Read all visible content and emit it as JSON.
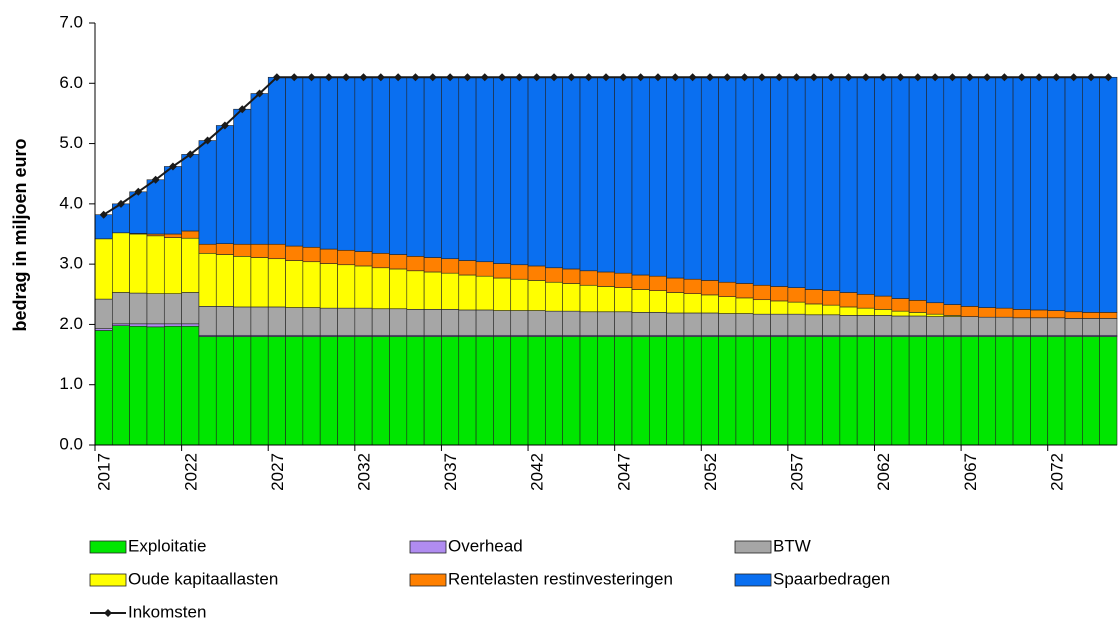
{
  "chart_data": {
    "type": "bar",
    "stacked": true,
    "y_label": "bedrag in miljoen euro",
    "ylim": [
      0,
      7
    ],
    "yticks": [
      {
        "value": 0,
        "label": "0.0"
      },
      {
        "value": 1,
        "label": "1.0"
      },
      {
        "value": 2,
        "label": "2.0"
      },
      {
        "value": 3,
        "label": "3.0"
      },
      {
        "value": 4,
        "label": "4.0"
      },
      {
        "value": 5,
        "label": "5.0"
      },
      {
        "value": 6,
        "label": "6.0"
      },
      {
        "value": 7,
        "label": "7.0"
      }
    ],
    "categories": [
      "2017",
      null,
      null,
      null,
      null,
      "2022",
      null,
      null,
      null,
      null,
      "2027",
      null,
      null,
      null,
      null,
      "2032",
      null,
      null,
      null,
      null,
      "2037",
      null,
      null,
      null,
      null,
      "2042",
      null,
      null,
      null,
      null,
      "2047",
      null,
      null,
      null,
      null,
      "2052",
      null,
      null,
      null,
      null,
      "2057",
      null,
      null,
      null,
      null,
      "2062",
      null,
      null,
      null,
      null,
      "2067",
      null,
      null,
      null,
      null,
      "2072",
      null,
      null,
      null
    ],
    "series": [
      {
        "name": "Exploitatie",
        "type": "bar",
        "color": "#00e600",
        "values": [
          1.9,
          1.98,
          1.97,
          1.96,
          1.97,
          1.97,
          1.8,
          1.8,
          1.8,
          1.8,
          1.8,
          1.8,
          1.8,
          1.8,
          1.8,
          1.8,
          1.8,
          1.8,
          1.8,
          1.8,
          1.8,
          1.8,
          1.8,
          1.8,
          1.8,
          1.8,
          1.8,
          1.8,
          1.8,
          1.8,
          1.8,
          1.8,
          1.8,
          1.8,
          1.8,
          1.8,
          1.8,
          1.8,
          1.8,
          1.8,
          1.8,
          1.8,
          1.8,
          1.8,
          1.8,
          1.8,
          1.8,
          1.8,
          1.8,
          1.8,
          1.8,
          1.8,
          1.8,
          1.8,
          1.8,
          1.8,
          1.8,
          1.8,
          1.8
        ]
      },
      {
        "name": "Overhead",
        "type": "bar",
        "color": "#b08cf0",
        "values": [
          0.03,
          0.03,
          0.04,
          0.05,
          0.04,
          0.04,
          0.02,
          0.02,
          0.02,
          0.02,
          0.02,
          0.02,
          0.02,
          0.02,
          0.02,
          0.02,
          0.02,
          0.02,
          0.02,
          0.02,
          0.02,
          0.02,
          0.02,
          0.02,
          0.02,
          0.02,
          0.02,
          0.02,
          0.02,
          0.02,
          0.02,
          0.02,
          0.02,
          0.02,
          0.02,
          0.02,
          0.02,
          0.02,
          0.02,
          0.02,
          0.02,
          0.02,
          0.02,
          0.02,
          0.02,
          0.02,
          0.02,
          0.02,
          0.02,
          0.02,
          0.02,
          0.02,
          0.02,
          0.02,
          0.02,
          0.02,
          0.02,
          0.02,
          0.02
        ]
      },
      {
        "name": "BTW",
        "type": "bar",
        "color": "#a6a6a6",
        "values": [
          0.49,
          0.52,
          0.51,
          0.5,
          0.5,
          0.52,
          0.48,
          0.48,
          0.47,
          0.47,
          0.47,
          0.46,
          0.46,
          0.45,
          0.45,
          0.45,
          0.44,
          0.44,
          0.43,
          0.43,
          0.43,
          0.42,
          0.42,
          0.41,
          0.41,
          0.41,
          0.4,
          0.4,
          0.39,
          0.39,
          0.39,
          0.38,
          0.38,
          0.37,
          0.37,
          0.37,
          0.36,
          0.36,
          0.35,
          0.35,
          0.35,
          0.34,
          0.34,
          0.33,
          0.33,
          0.33,
          0.32,
          0.32,
          0.31,
          0.31,
          0.31,
          0.3,
          0.3,
          0.29,
          0.29,
          0.29,
          0.28,
          0.28,
          0.28
        ]
      },
      {
        "name": "Oude kapitaallasten",
        "type": "bar",
        "color": "#ffff00",
        "values": [
          1.0,
          0.99,
          0.98,
          0.96,
          0.93,
          0.9,
          0.88,
          0.86,
          0.84,
          0.82,
          0.8,
          0.78,
          0.76,
          0.74,
          0.72,
          0.7,
          0.68,
          0.66,
          0.64,
          0.62,
          0.6,
          0.58,
          0.56,
          0.54,
          0.52,
          0.5,
          0.48,
          0.46,
          0.44,
          0.42,
          0.4,
          0.38,
          0.36,
          0.34,
          0.32,
          0.3,
          0.28,
          0.26,
          0.24,
          0.22,
          0.2,
          0.18,
          0.16,
          0.14,
          0.12,
          0.1,
          0.08,
          0.06,
          0.04,
          0.02,
          0,
          0,
          0,
          0,
          0,
          0,
          0,
          0,
          0
        ]
      },
      {
        "name": "Rentelasten restinvesteringen",
        "type": "bar",
        "color": "#ff8000",
        "values": [
          0,
          0,
          0.01,
          0.03,
          0.06,
          0.12,
          0.15,
          0.18,
          0.2,
          0.22,
          0.24,
          0.24,
          0.24,
          0.24,
          0.24,
          0.24,
          0.24,
          0.24,
          0.24,
          0.24,
          0.24,
          0.24,
          0.24,
          0.24,
          0.24,
          0.24,
          0.24,
          0.24,
          0.24,
          0.24,
          0.24,
          0.24,
          0.24,
          0.24,
          0.24,
          0.24,
          0.24,
          0.24,
          0.24,
          0.24,
          0.24,
          0.24,
          0.24,
          0.24,
          0.23,
          0.22,
          0.21,
          0.2,
          0.19,
          0.18,
          0.17,
          0.16,
          0.15,
          0.14,
          0.13,
          0.12,
          0.11,
          0.1,
          0.1
        ]
      },
      {
        "name": "Spaarbedragen",
        "type": "bar",
        "color": "#0a6ff0",
        "values": [
          0.4,
          0.48,
          0.69,
          0.9,
          1.12,
          1.27,
          1.72,
          1.96,
          2.24,
          2.5,
          2.77,
          2.8,
          2.82,
          2.85,
          2.87,
          2.89,
          2.92,
          2.94,
          2.97,
          2.99,
          3.01,
          3.04,
          3.06,
          3.09,
          3.11,
          3.13,
          3.16,
          3.18,
          3.21,
          3.23,
          3.25,
          3.28,
          3.3,
          3.33,
          3.35,
          3.37,
          3.4,
          3.42,
          3.45,
          3.47,
          3.49,
          3.52,
          3.54,
          3.57,
          3.6,
          3.63,
          3.67,
          3.7,
          3.74,
          3.77,
          3.8,
          3.82,
          3.83,
          3.85,
          3.86,
          3.87,
          3.89,
          3.9,
          3.9
        ]
      },
      {
        "name": "Inkomsten",
        "type": "line",
        "color": "#1a1a1a",
        "values": [
          3.82,
          4.0,
          4.2,
          4.4,
          4.62,
          4.82,
          5.05,
          5.3,
          5.57,
          5.83,
          6.1,
          6.1,
          6.1,
          6.1,
          6.1,
          6.1,
          6.1,
          6.1,
          6.1,
          6.1,
          6.1,
          6.1,
          6.1,
          6.1,
          6.1,
          6.1,
          6.1,
          6.1,
          6.1,
          6.1,
          6.1,
          6.1,
          6.1,
          6.1,
          6.1,
          6.1,
          6.1,
          6.1,
          6.1,
          6.1,
          6.1,
          6.1,
          6.1,
          6.1,
          6.1,
          6.1,
          6.1,
          6.1,
          6.1,
          6.1,
          6.1,
          6.1,
          6.1,
          6.1,
          6.1,
          6.1,
          6.1,
          6.1,
          6.1
        ]
      }
    ]
  }
}
